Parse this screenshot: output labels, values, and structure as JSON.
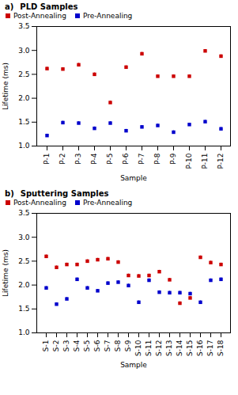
{
  "chart_data": [
    {
      "type": "errorbar",
      "legend_title": "PLD Samples",
      "annotation": "a)",
      "xlabel": "Sample",
      "ylabel": "Lifetime (ms)",
      "categories": [
        "P-1",
        "P-2",
        "P-3",
        "P-4",
        "P-5",
        "P-6",
        "P-7",
        "P-8",
        "P-9",
        "P-10",
        "P-11",
        "P-12"
      ],
      "series": [
        {
          "name": "Post-Annealing",
          "color": "#cc0000",
          "values": [
            2.62,
            2.61,
            2.7,
            2.5,
            1.91,
            2.65,
            2.93,
            2.46,
            2.46,
            2.46,
            2.99,
            2.88
          ],
          "errors": [
            0.03,
            0.03,
            0.03,
            0.03,
            0.03,
            0.03,
            0.03,
            0.03,
            0.03,
            0.03,
            0.03,
            0.03
          ]
        },
        {
          "name": "Pre-Annealing",
          "color": "#0000cc",
          "values": [
            1.22,
            1.49,
            1.48,
            1.37,
            1.48,
            1.32,
            1.4,
            1.43,
            1.29,
            1.45,
            1.51,
            1.36
          ],
          "errors": [
            0.03,
            0.03,
            0.03,
            0.03,
            0.03,
            0.03,
            0.03,
            0.03,
            0.03,
            0.03,
            0.03,
            0.03
          ]
        }
      ],
      "ylim": [
        1.0,
        3.5
      ],
      "yticks": [
        {
          "value": 1.0,
          "label": "1.0"
        },
        1.5,
        {
          "value": 2.0,
          "label": "2.0"
        },
        2.5,
        {
          "value": 3.0,
          "label": "3.0"
        },
        3.5
      ],
      "marker": "square",
      "legend": "upper left",
      "grid": false
    },
    {
      "type": "errorbar",
      "legend_title": "Sputtering Samples",
      "annotation": "b)",
      "xlabel": "Sample",
      "ylabel": "Lifetime (ms)",
      "categories": [
        "S-1",
        "S-2",
        "S-3",
        "S-4",
        "S-5",
        "S-6",
        "S-7",
        "S-8",
        "S-9",
        "S-10",
        "S-11",
        "S-12",
        "S-13",
        "S-14",
        "S-15",
        "S-16",
        "S-17",
        "S-18"
      ],
      "series": [
        {
          "name": "Post-Annealing",
          "color": "#cc0000",
          "values": [
            2.6,
            2.37,
            2.43,
            2.43,
            2.5,
            2.53,
            2.55,
            2.48,
            2.2,
            2.19,
            2.2,
            2.28,
            2.11,
            1.62,
            1.73,
            2.58,
            2.47,
            2.43
          ],
          "errors": [
            0.03,
            0.03,
            0.03,
            0.03,
            0.03,
            0.03,
            0.03,
            0.03,
            0.03,
            0.03,
            0.03,
            0.03,
            0.03,
            0.03,
            0.03,
            0.03,
            0.03,
            0.03
          ]
        },
        {
          "name": "Pre-Annealing",
          "color": "#0000cc",
          "values": [
            1.94,
            1.6,
            1.71,
            2.12,
            1.94,
            1.88,
            2.04,
            2.06,
            1.99,
            1.64,
            2.1,
            1.85,
            1.84,
            1.84,
            1.82,
            1.64,
            2.1,
            2.12
          ],
          "errors": [
            0.03,
            0.03,
            0.03,
            0.03,
            0.03,
            0.03,
            0.03,
            0.03,
            0.03,
            0.03,
            0.03,
            0.03,
            0.03,
            0.03,
            0.03,
            0.03,
            0.03,
            0.03
          ]
        }
      ],
      "ylim": [
        1.0,
        3.5
      ],
      "yticks": [
        {
          "value": 1.0,
          "label": "1.0"
        },
        1.5,
        {
          "value": 2.0,
          "label": "2.0"
        },
        2.5,
        {
          "value": 3.0,
          "label": "3.0"
        },
        3.5
      ],
      "marker": "square",
      "legend": "upper left",
      "grid": false
    }
  ]
}
